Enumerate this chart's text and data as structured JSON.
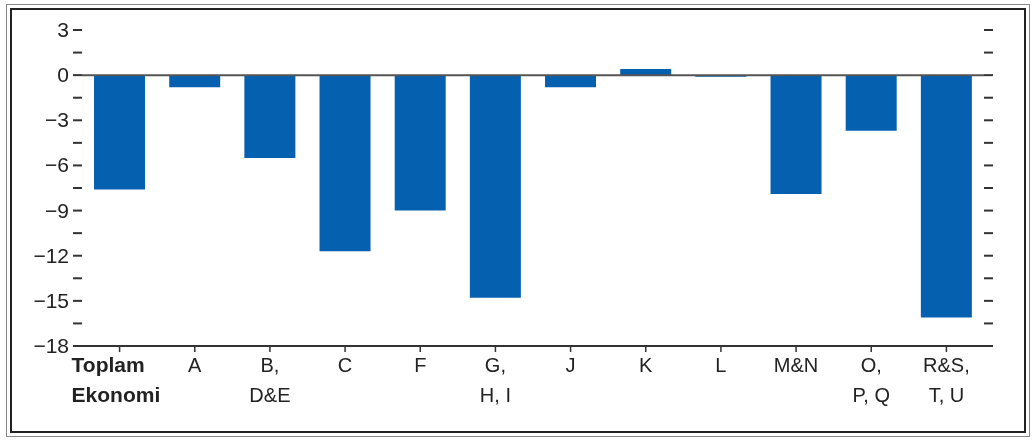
{
  "chart_data": {
    "type": "bar",
    "categories": [
      "Toplam Ekonomi",
      "A",
      "B, D&E",
      "C",
      "F",
      "G, H, I",
      "J",
      "K",
      "L",
      "M&N",
      "O, P, Q",
      "R&S, T, U"
    ],
    "values": [
      -7.6,
      -0.8,
      -5.5,
      -11.7,
      -9.0,
      -14.8,
      -0.8,
      0.4,
      -0.1,
      -7.9,
      -3.7,
      -16.1
    ],
    "color": "#0560b0",
    "ylim": [
      -18,
      3
    ],
    "yticks": [
      {
        "value": -18,
        "label": "−18"
      },
      {
        "value": -16.5,
        "label": null
      },
      {
        "value": -15,
        "label": "−15"
      },
      {
        "value": -13.5,
        "label": null
      },
      {
        "value": -12,
        "label": "−12"
      },
      {
        "value": -10.5,
        "label": null
      },
      {
        "value": -9,
        "label": "−9"
      },
      {
        "value": -7.5,
        "label": null
      },
      {
        "value": -6,
        "label": "−6"
      },
      {
        "value": -4.5,
        "label": null
      },
      {
        "value": -3,
        "label": "−3"
      },
      {
        "value": -1.5,
        "label": null
      },
      {
        "value": 0,
        "label": "0"
      },
      {
        "value": 1.5,
        "label": null
      },
      {
        "value": 3,
        "label": "3"
      }
    ],
    "ref_lines": [
      {
        "axis": "y",
        "value": 0,
        "color": "#555555"
      }
    ],
    "grid": false,
    "legend": false
  }
}
